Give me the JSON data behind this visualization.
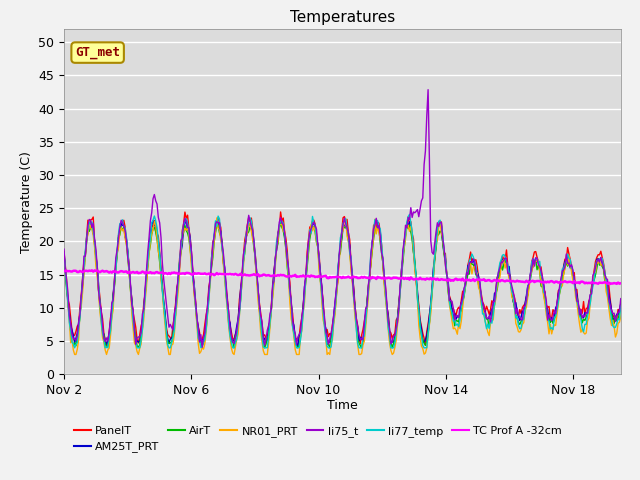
{
  "title": "Temperatures",
  "xlabel": "Time",
  "ylabel": "Temperature (C)",
  "ylim": [
    0,
    52
  ],
  "yticks": [
    0,
    5,
    10,
    15,
    20,
    25,
    30,
    35,
    40,
    45,
    50
  ],
  "bg_color": "#dcdcdc",
  "series": {
    "PanelT": {
      "color": "#ff0000",
      "lw": 1.0
    },
    "AM25T_PRT": {
      "color": "#0000cc",
      "lw": 1.0
    },
    "AirT": {
      "color": "#00bb00",
      "lw": 1.0
    },
    "NR01_PRT": {
      "color": "#ffaa00",
      "lw": 1.0
    },
    "li75_t": {
      "color": "#9900cc",
      "lw": 1.0
    },
    "li77_temp": {
      "color": "#00cccc",
      "lw": 1.0
    },
    "TC Prof A -32cm": {
      "color": "#ff00ff",
      "lw": 1.8
    }
  },
  "annotation": {
    "text": "GT_met",
    "fontsize": 9,
    "color": "#8B0000",
    "bbox_facecolor": "#ffff99",
    "bbox_edgecolor": "#aa8800"
  },
  "xtick_labels": [
    "Nov 2",
    "Nov 6",
    "Nov 10",
    "Nov 14",
    "Nov 18"
  ],
  "xtick_positions": [
    2,
    6,
    10,
    14,
    18
  ],
  "xmin": 2,
  "xmax": 19.5
}
